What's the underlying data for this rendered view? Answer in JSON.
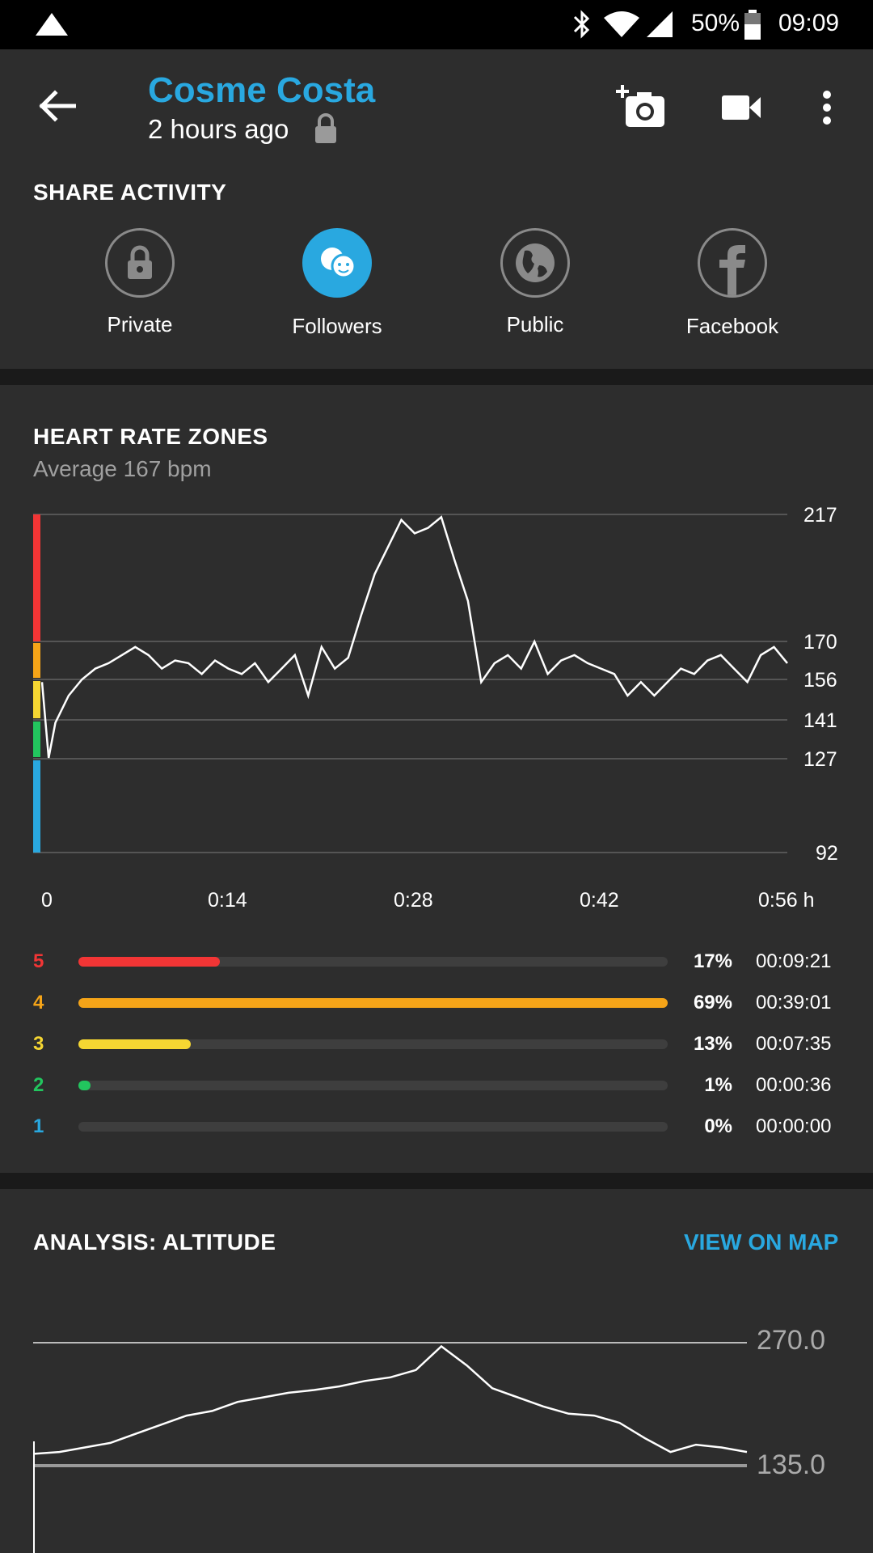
{
  "status_bar": {
    "battery": "50%",
    "time": "09:09"
  },
  "header": {
    "user_name": "Cosme Costa",
    "time_ago": "2 hours ago",
    "share_title": "SHARE ACTIVITY",
    "share_options": [
      {
        "label": "Private",
        "icon": "lock-icon"
      },
      {
        "label": "Followers",
        "icon": "followers-icon",
        "selected": true
      },
      {
        "label": "Public",
        "icon": "globe-icon"
      },
      {
        "label": "Facebook",
        "icon": "facebook-icon"
      }
    ]
  },
  "colors": {
    "accent": "#29a8e0",
    "zone5": "#f23535",
    "zone4": "#f5a418",
    "zone3": "#f5d632",
    "zone2": "#22c55e",
    "zone1": "#29a8e0"
  },
  "heart_rate": {
    "title": "HEART RATE ZONES",
    "average": "Average 167 bpm",
    "y_ticks": [
      "217",
      "170",
      "156",
      "141",
      "127",
      "92"
    ],
    "x_ticks": [
      "0",
      "0:14",
      "0:28",
      "0:42",
      "0:56 h"
    ],
    "zones": [
      {
        "num": "5",
        "pct": "17%",
        "time": "00:09:21",
        "fraction": 0.24
      },
      {
        "num": "4",
        "pct": "69%",
        "time": "00:39:01",
        "fraction": 1.0
      },
      {
        "num": "3",
        "pct": "13%",
        "time": "00:07:35",
        "fraction": 0.19
      },
      {
        "num": "2",
        "pct": "1%",
        "time": "00:00:36",
        "fraction": 0.02
      },
      {
        "num": "1",
        "pct": "0%",
        "time": "00:00:00",
        "fraction": 0.0
      }
    ]
  },
  "altitude": {
    "title": "ANALYSIS: ALTITUDE",
    "link": "VIEW ON MAP",
    "y_ticks": [
      "270.0",
      "135.0"
    ]
  },
  "chart_data": [
    {
      "type": "line",
      "title": "HEART RATE ZONES",
      "xlabel": "h",
      "ylabel": "bpm",
      "ylim": [
        92,
        217
      ],
      "xlim": [
        0,
        56
      ],
      "x": [
        0,
        0.5,
        1,
        2,
        3,
        4,
        5,
        6,
        7,
        8,
        9,
        10,
        11,
        12,
        13,
        14,
        15,
        16,
        17,
        18,
        19,
        20,
        21,
        22,
        23,
        24,
        25,
        26,
        27,
        28,
        29,
        30,
        31,
        32,
        33,
        34,
        35,
        36,
        37,
        38,
        39,
        40,
        41,
        42,
        43,
        44,
        45,
        46,
        47,
        48,
        49,
        50,
        51,
        52,
        53,
        54,
        55,
        56
      ],
      "y": [
        155,
        127,
        140,
        150,
        156,
        160,
        162,
        165,
        168,
        165,
        160,
        163,
        162,
        158,
        163,
        160,
        158,
        162,
        155,
        160,
        165,
        150,
        168,
        160,
        164,
        180,
        195,
        205,
        215,
        210,
        212,
        216,
        200,
        185,
        155,
        162,
        165,
        160,
        170,
        158,
        163,
        165,
        162,
        160,
        158,
        150,
        155,
        150,
        155,
        160,
        158,
        163,
        165,
        160,
        155,
        165,
        168,
        162
      ]
    },
    {
      "type": "line",
      "title": "ANALYSIS: ALTITUDE",
      "ylim": [
        135,
        270
      ],
      "x": [
        0,
        2,
        4,
        6,
        8,
        10,
        12,
        14,
        16,
        18,
        20,
        22,
        24,
        26,
        28,
        30,
        32,
        34,
        36,
        38,
        40,
        42,
        44,
        46,
        48,
        50,
        52,
        54,
        56
      ],
      "y": [
        148,
        150,
        155,
        160,
        170,
        180,
        190,
        195,
        205,
        210,
        215,
        218,
        222,
        228,
        232,
        240,
        266,
        245,
        220,
        210,
        200,
        192,
        190,
        182,
        165,
        150,
        158,
        155,
        150
      ]
    }
  ]
}
